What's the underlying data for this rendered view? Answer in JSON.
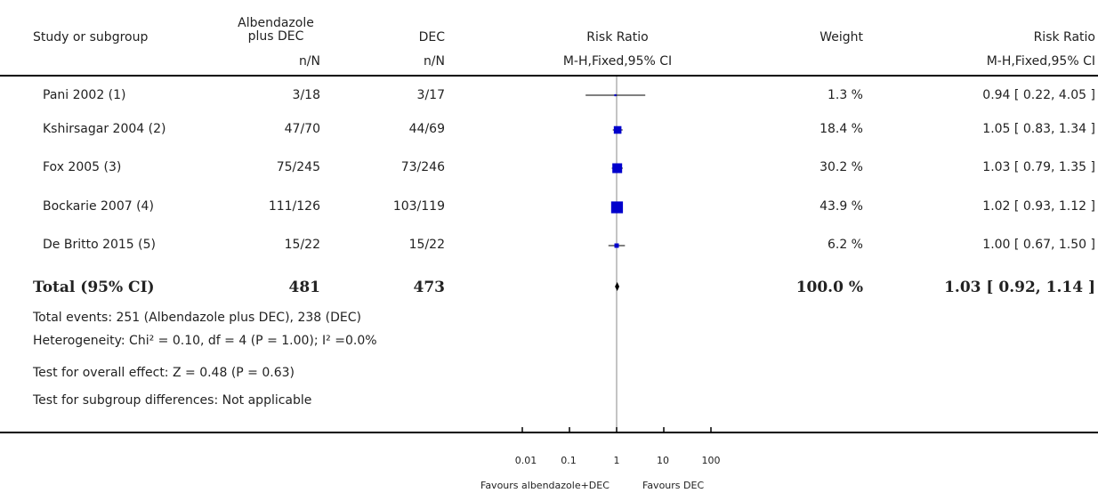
{
  "header": {
    "study_label": "Study or subgroup",
    "col1_label_line1": "Albendazole",
    "col1_label_line2": "plus DEC",
    "col1_sub": "n/N",
    "col2_label": "DEC",
    "col2_sub": "n/N",
    "rr_label": "Risk Ratio",
    "rr_sub": "M-H,Fixed,95% CI",
    "weight_label": "Weight",
    "rr2_label": "Risk Ratio",
    "rr2_sub": "M-H,Fixed,95% CI"
  },
  "studies": [
    {
      "name": "Pani 2002 (1)",
      "exp": "3/18",
      "ctrl": "3/17",
      "weight": "1.3 %",
      "ci_text": "0.94 [ 0.22, 4.05 ]"
    },
    {
      "name": "Kshirsagar 2004 (2)",
      "exp": "47/70",
      "ctrl": "44/69",
      "weight": "18.4 %",
      "ci_text": "1.05 [ 0.83, 1.34 ]"
    },
    {
      "name": "Fox 2005 (3)",
      "exp": "75/245",
      "ctrl": "73/246",
      "weight": "30.2 %",
      "ci_text": "1.03 [ 0.79, 1.35 ]"
    },
    {
      "name": "Bockarie 2007 (4)",
      "exp": "111/126",
      "ctrl": "103/119",
      "weight": "43.9 %",
      "ci_text": "1.02 [ 0.93, 1.12 ]"
    },
    {
      "name": "De Britto 2015 (5)",
      "exp": "15/22",
      "ctrl": "15/22",
      "weight": "6.2 %",
      "ci_text": "1.00 [ 0.67, 1.50 ]"
    }
  ],
  "total": {
    "name": "Total (95% CI)",
    "exp": "481",
    "ctrl": "473",
    "weight": "100.0 %",
    "ci_text": "1.03 [ 0.92, 1.14 ]"
  },
  "notes": {
    "events": "Total events: 251 (Albendazole plus DEC), 238 (DEC)",
    "heterogeneity": "Heterogeneity: Chi² = 0.10, df = 4 (P = 1.00); I² =0.0%",
    "overall": "Test for overall effect: Z = 0.48 (P = 0.63)",
    "subgroup": "Test for subgroup differences: Not applicable"
  },
  "axis": {
    "favours_left": "Favours albendazole+DEC",
    "favours_right": "Favours DEC"
  },
  "chart_data": {
    "type": "forest",
    "scale": "log",
    "xlim": [
      0.01,
      100
    ],
    "ticks": [
      {
        "value": 0.01,
        "label": "0.01"
      },
      {
        "value": 0.1,
        "label": "0.1"
      },
      {
        "value": 1,
        "label": "1"
      },
      {
        "value": 10,
        "label": "10"
      },
      {
        "value": 100,
        "label": "100"
      }
    ],
    "marker_color": "#0000cc",
    "studies": [
      {
        "name": "Pani 2002 (1)",
        "rr": 0.94,
        "lo": 0.22,
        "hi": 4.05,
        "weight": 1.3
      },
      {
        "name": "Kshirsagar 2004 (2)",
        "rr": 1.05,
        "lo": 0.83,
        "hi": 1.34,
        "weight": 18.4
      },
      {
        "name": "Fox 2005 (3)",
        "rr": 1.03,
        "lo": 0.79,
        "hi": 1.35,
        "weight": 30.2
      },
      {
        "name": "Bockarie 2007 (4)",
        "rr": 1.02,
        "lo": 0.93,
        "hi": 1.12,
        "weight": 43.9
      },
      {
        "name": "De Britto 2015 (5)",
        "rr": 1.0,
        "lo": 0.67,
        "hi": 1.5,
        "weight": 6.2
      }
    ],
    "total": {
      "rr": 1.03,
      "lo": 0.92,
      "hi": 1.14
    }
  }
}
